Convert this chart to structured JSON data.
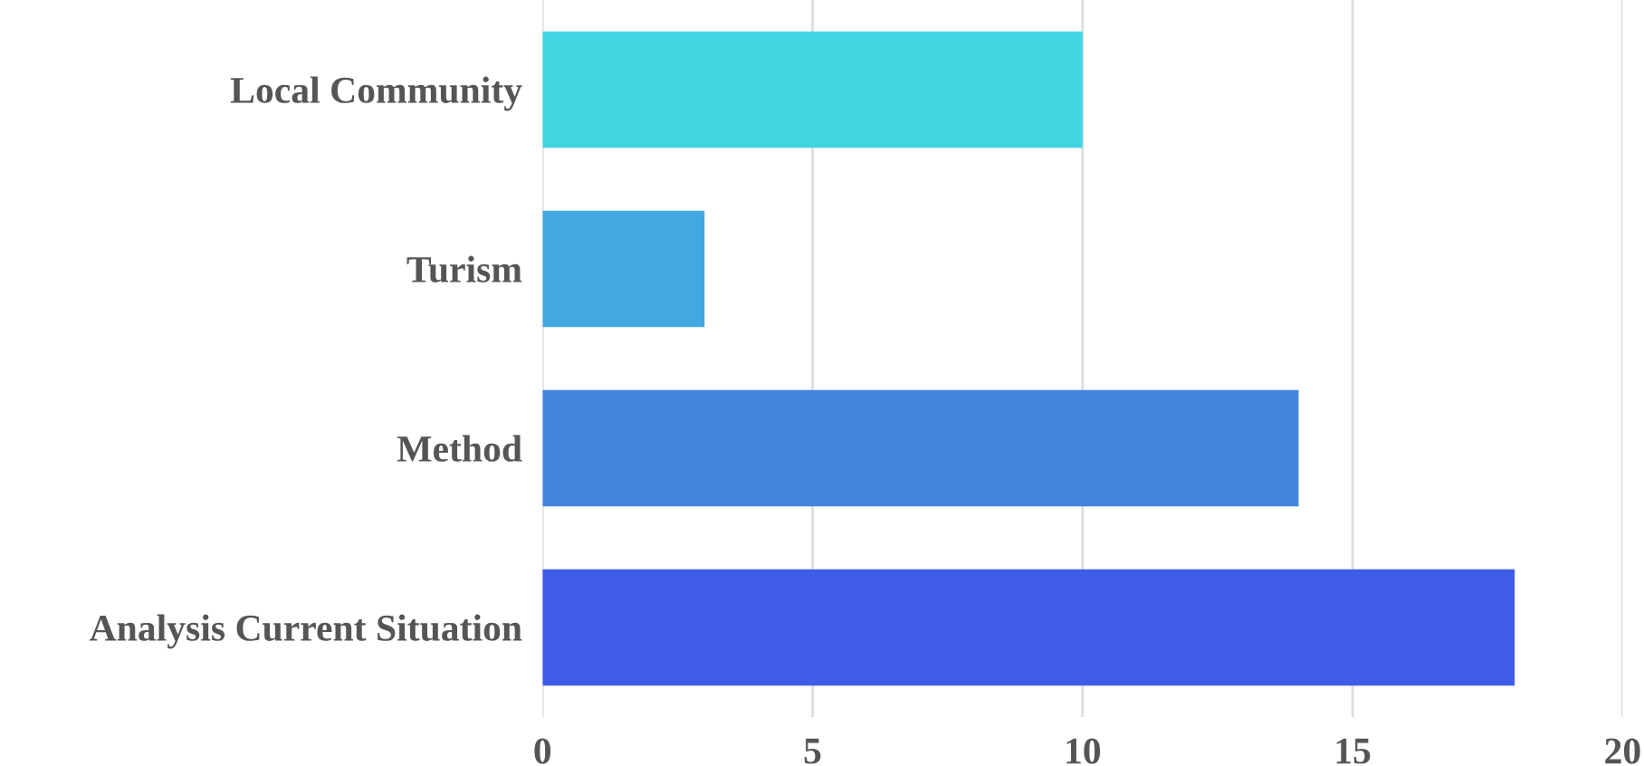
{
  "chart_data": {
    "type": "bar",
    "orientation": "horizontal",
    "categories": [
      "Local Community",
      "Turism",
      "Method",
      "Analysis Current Situation"
    ],
    "values": [
      10,
      3,
      14,
      18
    ],
    "colors": [
      "#41d5e2",
      "#41a8e2",
      "#4485e0",
      "#3f5ce6"
    ],
    "xlim": [
      0,
      20
    ],
    "xticks": [
      0,
      5,
      10,
      15,
      20
    ],
    "grid": "x",
    "legend": false
  }
}
